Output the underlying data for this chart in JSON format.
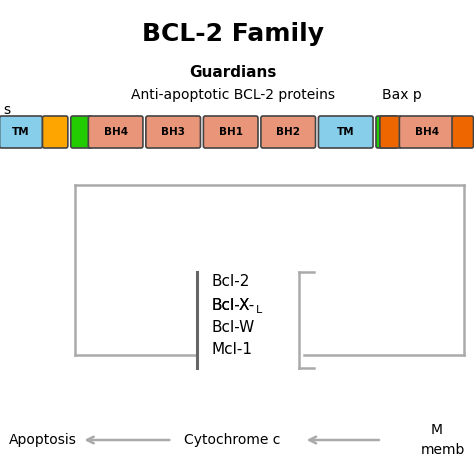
{
  "title": "BCL-2 Family",
  "title_fontsize": 18,
  "title_fontweight": "bold",
  "label_guardians": "Guardians",
  "label_anti": "Anti-apoptotic BCL-2 proteins",
  "label_bax": "Bax p",
  "label_left_partial": "s",
  "color_green": "#22CC00",
  "color_salmon": "#E8957A",
  "color_blue": "#87CEEB",
  "color_orange_yellow": "#FFA500",
  "color_orange_dark": "#EE6600",
  "color_gray": "#AAAAAA",
  "color_dark_gray": "#666666",
  "proteins": [
    "Bcl-2",
    "Bcl-X",
    "Bcl-W",
    "Mcl-1"
  ],
  "protein_sub": [
    "",
    "L",
    "",
    ""
  ],
  "background": "#ffffff"
}
